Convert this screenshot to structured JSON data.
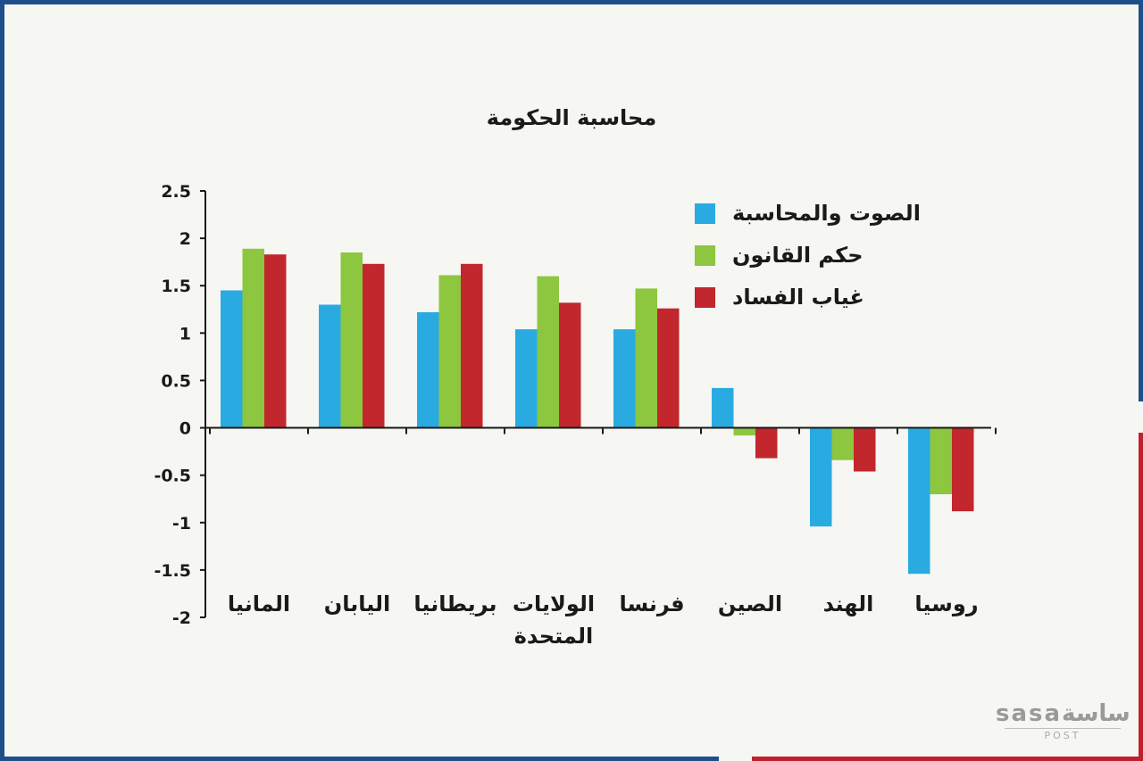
{
  "chart_data": {
    "type": "bar",
    "title": "محاسبة الحكومة",
    "categories": [
      "المانيا",
      "اليابان",
      "بريطانيا",
      "الولايات المتحدة",
      "فرنسا",
      "الصين",
      "الهند",
      "روسيا"
    ],
    "category_lines": [
      [
        "المانيا"
      ],
      [
        "اليابان"
      ],
      [
        "بريطانيا"
      ],
      [
        "الولايات",
        "المتحدة"
      ],
      [
        "فرنسا"
      ],
      [
        "الصين"
      ],
      [
        "الهند"
      ],
      [
        "روسيا"
      ]
    ],
    "series": [
      {
        "name": "الصوت والمحاسبة",
        "color": "#29abe2",
        "values": [
          1.45,
          1.3,
          1.22,
          1.04,
          1.04,
          0.42,
          -1.04,
          -1.54
        ]
      },
      {
        "name": "حكم القانون",
        "color": "#8dc63f",
        "values": [
          1.89,
          1.85,
          1.61,
          1.6,
          1.47,
          -0.08,
          -0.34,
          -0.7
        ]
      },
      {
        "name": "غياب الفساد",
        "color": "#c1272d",
        "values": [
          1.83,
          1.73,
          1.73,
          1.32,
          1.26,
          -0.32,
          -0.46,
          -0.88
        ]
      }
    ],
    "yticks": [
      "2.5",
      "2",
      "1.5",
      "1",
      "0.5",
      "0",
      "-0.5",
      "-1",
      "-1.5",
      "-2"
    ],
    "ylim": [
      -2,
      2.5
    ],
    "legend_position": "top-right",
    "grid": false
  },
  "logo": {
    "text": "sasaساسة",
    "sub": "POST"
  }
}
